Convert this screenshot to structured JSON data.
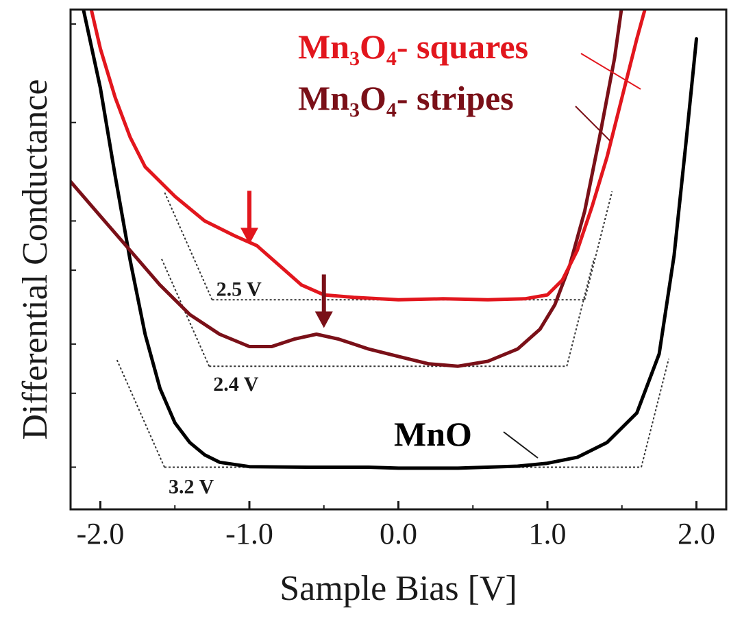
{
  "chart_data": {
    "type": "line",
    "xlabel": "Sample Bias [V]",
    "ylabel": "Differential Conductance",
    "xlim": [
      -2.2,
      2.2
    ],
    "ylim": [
      0,
      1
    ],
    "x_ticks": [
      "-2.0",
      "-1.0",
      "0.0",
      "1.0",
      "2.0"
    ],
    "x_tick_values": [
      -2.0,
      -1.0,
      0.0,
      1.0,
      2.0
    ],
    "grid": false,
    "series": [
      {
        "name": "MnO",
        "label_main": "MnO",
        "label_sub": "",
        "label_tail": "",
        "color": "#000000",
        "points": [
          [
            -2.15,
            1.03
          ],
          [
            -2.0,
            0.82
          ],
          [
            -1.9,
            0.64
          ],
          [
            -1.8,
            0.47
          ],
          [
            -1.7,
            0.32
          ],
          [
            -1.6,
            0.21
          ],
          [
            -1.5,
            0.14
          ],
          [
            -1.4,
            0.1
          ],
          [
            -1.3,
            0.075
          ],
          [
            -1.2,
            0.06
          ],
          [
            -1.0,
            0.051
          ],
          [
            -0.6,
            0.05
          ],
          [
            -0.2,
            0.05
          ],
          [
            0.0,
            0.048
          ],
          [
            0.4,
            0.048
          ],
          [
            0.8,
            0.052
          ],
          [
            1.0,
            0.058
          ],
          [
            1.2,
            0.07
          ],
          [
            1.4,
            0.1
          ],
          [
            1.6,
            0.16
          ],
          [
            1.75,
            0.28
          ],
          [
            1.85,
            0.48
          ],
          [
            1.93,
            0.71
          ],
          [
            2.0,
            0.92
          ]
        ],
        "gap_label": "3.2 V",
        "gap": [
          -1.57,
          1.63
        ]
      },
      {
        "name": "Mn3O4- stripes",
        "label_main": "Mn",
        "label_sub": "3",
        "label_tail": "O",
        "label_sub2": "4",
        "label_end": "- stripes",
        "color": "#7a1018",
        "points": [
          [
            -2.2,
            0.63
          ],
          [
            -2.0,
            0.56
          ],
          [
            -1.8,
            0.49
          ],
          [
            -1.6,
            0.42
          ],
          [
            -1.4,
            0.36
          ],
          [
            -1.2,
            0.32
          ],
          [
            -1.0,
            0.295
          ],
          [
            -0.85,
            0.295
          ],
          [
            -0.7,
            0.31
          ],
          [
            -0.55,
            0.32
          ],
          [
            -0.4,
            0.31
          ],
          [
            -0.2,
            0.29
          ],
          [
            0.0,
            0.275
          ],
          [
            0.2,
            0.26
          ],
          [
            0.4,
            0.255
          ],
          [
            0.6,
            0.265
          ],
          [
            0.8,
            0.29
          ],
          [
            0.95,
            0.33
          ],
          [
            1.05,
            0.38
          ],
          [
            1.15,
            0.46
          ],
          [
            1.25,
            0.57
          ],
          [
            1.35,
            0.72
          ],
          [
            1.45,
            0.88
          ],
          [
            1.52,
            1.03
          ]
        ],
        "gap_label": "2.4 V",
        "gap": [
          -1.27,
          1.13
        ]
      },
      {
        "name": "Mn3O4- squares",
        "label_main": "Mn",
        "label_sub": "3",
        "label_tail": "O",
        "label_sub2": "4",
        "label_end": "- squares",
        "color": "#e2161d",
        "points": [
          [
            -2.1,
            1.03
          ],
          [
            -2.0,
            0.9
          ],
          [
            -1.9,
            0.8
          ],
          [
            -1.8,
            0.72
          ],
          [
            -1.7,
            0.66
          ],
          [
            -1.5,
            0.6
          ],
          [
            -1.3,
            0.55
          ],
          [
            -1.1,
            0.52
          ],
          [
            -0.95,
            0.5
          ],
          [
            -0.8,
            0.46
          ],
          [
            -0.65,
            0.42
          ],
          [
            -0.5,
            0.4
          ],
          [
            -0.3,
            0.395
          ],
          [
            0.0,
            0.39
          ],
          [
            0.3,
            0.392
          ],
          [
            0.6,
            0.39
          ],
          [
            0.85,
            0.392
          ],
          [
            1.0,
            0.4
          ],
          [
            1.1,
            0.43
          ],
          [
            1.2,
            0.49
          ],
          [
            1.3,
            0.58
          ],
          [
            1.4,
            0.68
          ],
          [
            1.5,
            0.8
          ],
          [
            1.6,
            0.92
          ],
          [
            1.7,
            1.03
          ]
        ],
        "gap_label": "2.5 V",
        "gap": [
          -1.25,
          1.25
        ]
      }
    ]
  }
}
